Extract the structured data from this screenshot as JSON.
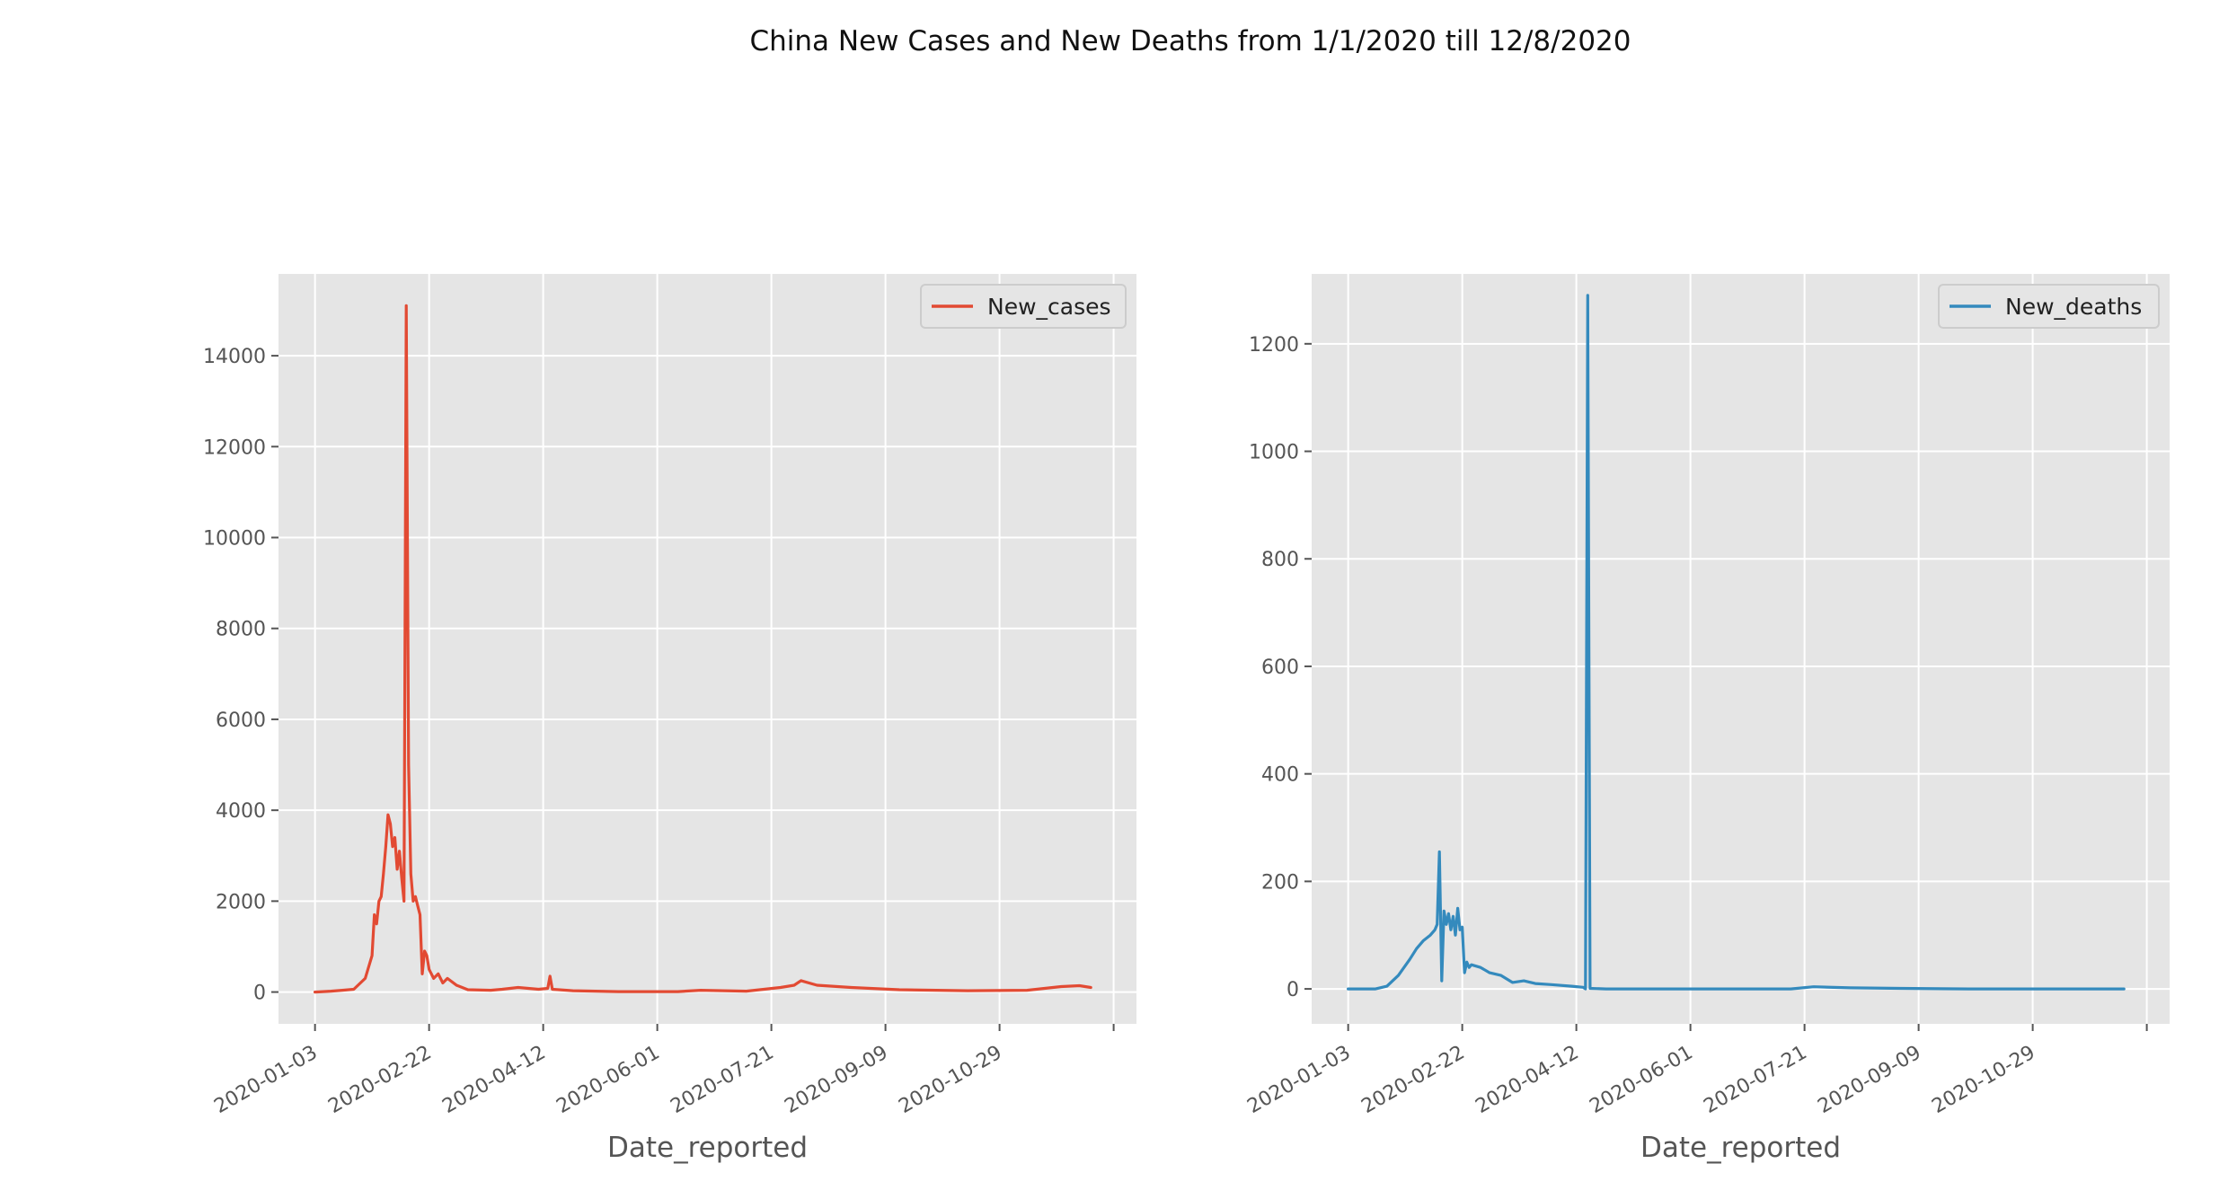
{
  "title": "China New Cases and New Deaths from 1/1/2020 till 12/8/2020",
  "chart_data": [
    {
      "type": "line",
      "xlabel": "Date_reported",
      "ylabel": "",
      "xlim": [
        "2019-12-18",
        "2020-12-28"
      ],
      "ylim": [
        -700,
        15800
      ],
      "xticks": [
        "2020-01-03",
        "2020-02-22",
        "2020-04-12",
        "2020-06-01",
        "2020-07-21",
        "2020-09-09",
        "2020-10-29"
      ],
      "yticks": [
        0,
        2000,
        4000,
        6000,
        8000,
        10000,
        12000,
        14000
      ],
      "legend": "upper-right",
      "grid": true,
      "series": [
        {
          "name": "New_cases",
          "color": "#e24a33",
          "x": [
            "2020-01-03",
            "2020-01-10",
            "2020-01-15",
            "2020-01-20",
            "2020-01-25",
            "2020-01-28",
            "2020-01-29",
            "2020-01-30",
            "2020-01-31",
            "2020-02-01",
            "2020-02-02",
            "2020-02-03",
            "2020-02-04",
            "2020-02-05",
            "2020-02-06",
            "2020-02-07",
            "2020-02-08",
            "2020-02-09",
            "2020-02-10",
            "2020-02-11",
            "2020-02-12",
            "2020-02-13",
            "2020-02-14",
            "2020-02-15",
            "2020-02-16",
            "2020-02-17",
            "2020-02-18",
            "2020-02-19",
            "2020-02-20",
            "2020-02-21",
            "2020-02-22",
            "2020-02-24",
            "2020-02-26",
            "2020-02-28",
            "2020-03-01",
            "2020-03-05",
            "2020-03-10",
            "2020-03-20",
            "2020-03-25",
            "2020-04-01",
            "2020-04-10",
            "2020-04-14",
            "2020-04-15",
            "2020-04-16",
            "2020-04-25",
            "2020-05-15",
            "2020-06-10",
            "2020-06-20",
            "2020-07-10",
            "2020-07-25",
            "2020-07-31",
            "2020-08-03",
            "2020-08-10",
            "2020-08-25",
            "2020-09-15",
            "2020-10-15",
            "2020-11-10",
            "2020-11-25",
            "2020-12-03",
            "2020-12-08"
          ],
          "values": [
            0,
            20,
            40,
            60,
            300,
            800,
            1700,
            1500,
            2000,
            2100,
            2600,
            3200,
            3900,
            3700,
            3200,
            3400,
            2700,
            3100,
            2500,
            2000,
            15100,
            5000,
            2600,
            2000,
            2100,
            1900,
            1700,
            400,
            900,
            800,
            500,
            300,
            400,
            200,
            300,
            150,
            50,
            40,
            60,
            100,
            60,
            80,
            350,
            60,
            30,
            10,
            10,
            40,
            20,
            100,
            150,
            250,
            150,
            100,
            50,
            30,
            40,
            120,
            140,
            100
          ]
        }
      ]
    },
    {
      "type": "line",
      "xlabel": "Date_reported",
      "ylabel": "",
      "xlim": [
        "2019-12-18",
        "2020-12-28"
      ],
      "ylim": [
        -65,
        1330
      ],
      "xticks": [
        "2020-01-03",
        "2020-02-22",
        "2020-04-12",
        "2020-06-01",
        "2020-07-21",
        "2020-09-09",
        "2020-10-29"
      ],
      "yticks": [
        0,
        200,
        400,
        600,
        800,
        1000,
        1200
      ],
      "legend": "upper-right",
      "grid": true,
      "series": [
        {
          "name": "New_deaths",
          "color": "#348abd",
          "x": [
            "2020-01-03",
            "2020-01-15",
            "2020-01-20",
            "2020-01-25",
            "2020-01-30",
            "2020-02-02",
            "2020-02-05",
            "2020-02-08",
            "2020-02-10",
            "2020-02-11",
            "2020-02-12",
            "2020-02-13",
            "2020-02-14",
            "2020-02-15",
            "2020-02-16",
            "2020-02-17",
            "2020-02-18",
            "2020-02-19",
            "2020-02-20",
            "2020-02-21",
            "2020-02-22",
            "2020-02-23",
            "2020-02-24",
            "2020-02-25",
            "2020-02-26",
            "2020-03-01",
            "2020-03-05",
            "2020-03-10",
            "2020-03-15",
            "2020-03-20",
            "2020-03-25",
            "2020-04-01",
            "2020-04-10",
            "2020-04-15",
            "2020-04-16",
            "2020-04-17",
            "2020-04-18",
            "2020-04-25",
            "2020-05-15",
            "2020-06-15",
            "2020-07-15",
            "2020-07-25",
            "2020-08-10",
            "2020-09-01",
            "2020-10-01",
            "2020-11-01",
            "2020-12-08"
          ],
          "values": [
            0,
            0,
            5,
            25,
            55,
            75,
            90,
            100,
            110,
            120,
            255,
            15,
            145,
            120,
            140,
            110,
            135,
            100,
            150,
            110,
            115,
            30,
            50,
            40,
            45,
            40,
            30,
            25,
            12,
            15,
            10,
            8,
            5,
            3,
            0,
            1290,
            1,
            0,
            0,
            0,
            0,
            4,
            2,
            1,
            0,
            0,
            0
          ]
        }
      ]
    }
  ]
}
